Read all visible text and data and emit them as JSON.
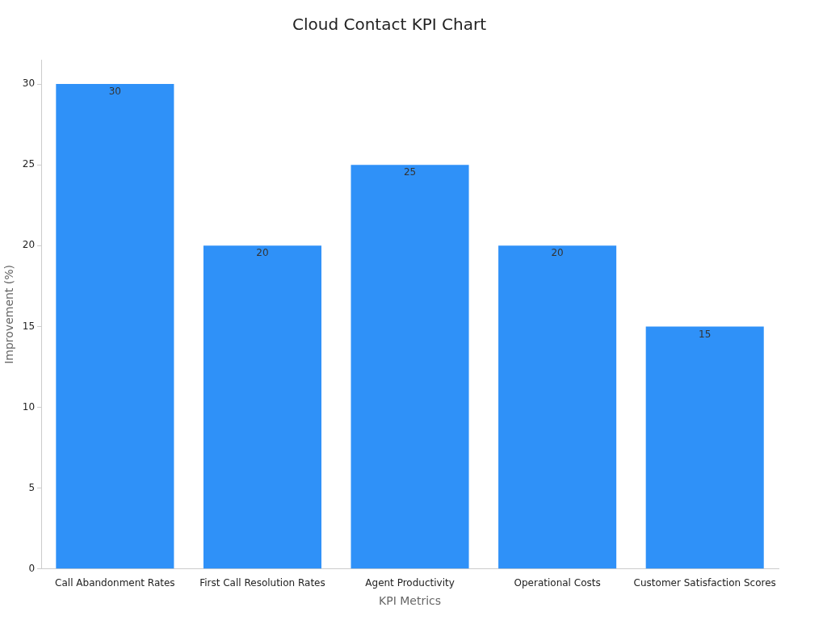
{
  "chart_data": {
    "type": "bar",
    "title": "Cloud Contact KPI Chart",
    "xlabel": "KPI Metrics",
    "ylabel": "Improvement (%)",
    "categories": [
      "Call Abandonment Rates",
      "First Call Resolution Rates",
      "Agent Productivity",
      "Operational Costs",
      "Customer Satisfaction Scores"
    ],
    "values": [
      30,
      20,
      25,
      20,
      15
    ],
    "color": "#2f91f8",
    "ylim": [
      0,
      31.5
    ],
    "yticks": [
      0,
      5,
      10,
      15,
      20,
      25,
      30
    ],
    "data_labels": true
  }
}
